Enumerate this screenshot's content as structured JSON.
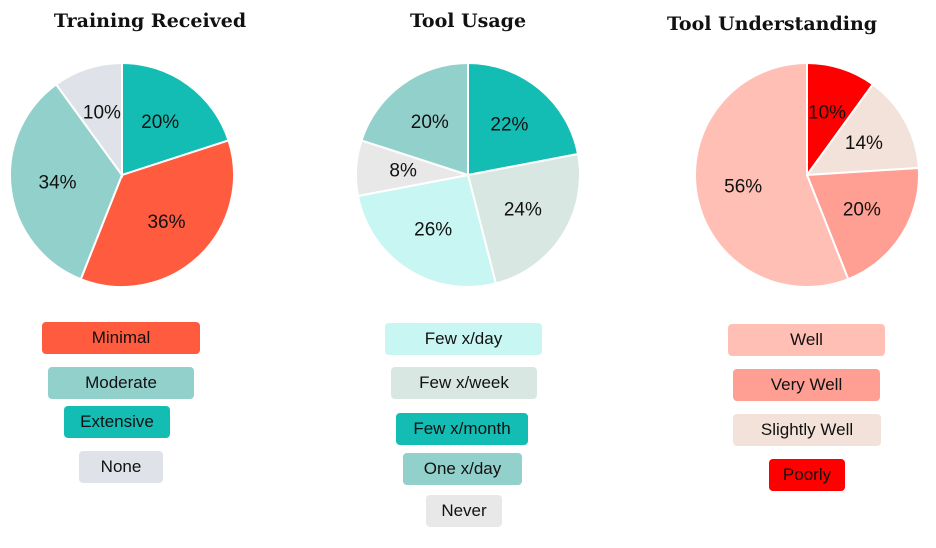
{
  "chart_data": [
    {
      "type": "pie",
      "title": "Training Received",
      "slices": [
        {
          "label": "Extensive",
          "value": 20,
          "display": "20%",
          "color": "#14bdb3"
        },
        {
          "label": "Minimal",
          "value": 36,
          "display": "36%",
          "color": "#ff5b3f"
        },
        {
          "label": "Moderate",
          "value": 34,
          "display": "34%",
          "color": "#92d0cc"
        },
        {
          "label": "None",
          "value": 10,
          "display": "10%",
          "color": "#dfe2e8"
        }
      ],
      "legend": [
        "Minimal",
        "Moderate",
        "Extensive",
        "None"
      ]
    },
    {
      "type": "pie",
      "title": "Tool Usage",
      "slices": [
        {
          "label": "Few x/month",
          "value": 22,
          "display": "22%",
          "color": "#14bdb3"
        },
        {
          "label": "Few x/week",
          "value": 24,
          "display": "24%",
          "color": "#d9e7e3"
        },
        {
          "label": "Few x/day",
          "value": 26,
          "display": "26%",
          "color": "#c8f6f2"
        },
        {
          "label": "Never",
          "value": 8,
          "display": "8%",
          "color": "#e8e8e8"
        },
        {
          "label": "One x/day",
          "value": 20,
          "display": "20%",
          "color": "#92d0cc"
        }
      ],
      "legend": [
        "Few x/day",
        "Few x/week",
        "Few x/month",
        "One x/day",
        "Never"
      ]
    },
    {
      "type": "pie",
      "title": "Tool Understanding",
      "slices": [
        {
          "label": "Poorly",
          "value": 10,
          "display": "10%",
          "color": "#ff0000"
        },
        {
          "label": "Slightly Well",
          "value": 14,
          "display": "14%",
          "color": "#f2e2d9"
        },
        {
          "label": "Very Well",
          "value": 20,
          "display": "20%",
          "color": "#ff9f94"
        },
        {
          "label": "Well",
          "value": 56,
          "display": "56%",
          "color": "#ffbfb5"
        }
      ],
      "legend": [
        "Well",
        "Very Well",
        "Slightly Well",
        "Poorly"
      ]
    }
  ]
}
